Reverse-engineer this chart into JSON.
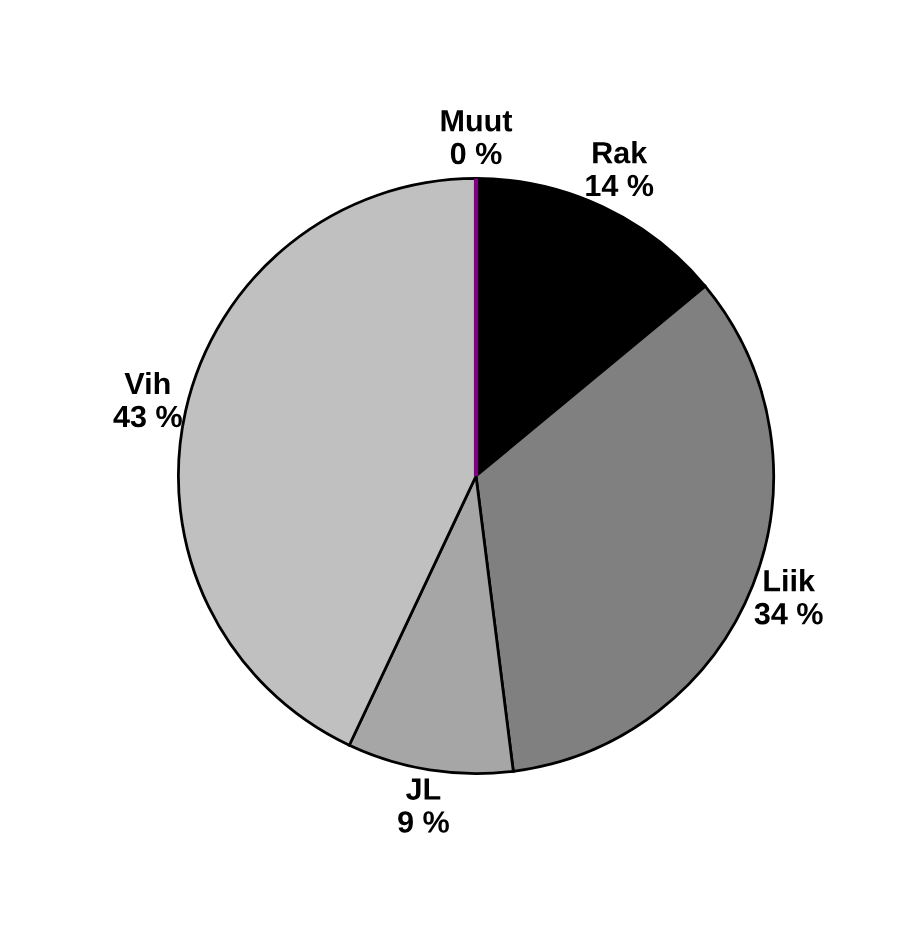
{
  "chart_data": {
    "type": "pie",
    "categories": [
      "Rak",
      "Liik",
      "JL",
      "Vih",
      "Muut"
    ],
    "values": [
      14,
      34,
      9,
      43,
      0
    ],
    "value_labels": [
      "14 %",
      "34 %",
      "9 %",
      "43 %",
      "0 %"
    ],
    "colors": [
      "#000000",
      "#808080",
      "#a6a6a6",
      "#c0c0c0",
      "#800080"
    ],
    "legend": false
  }
}
